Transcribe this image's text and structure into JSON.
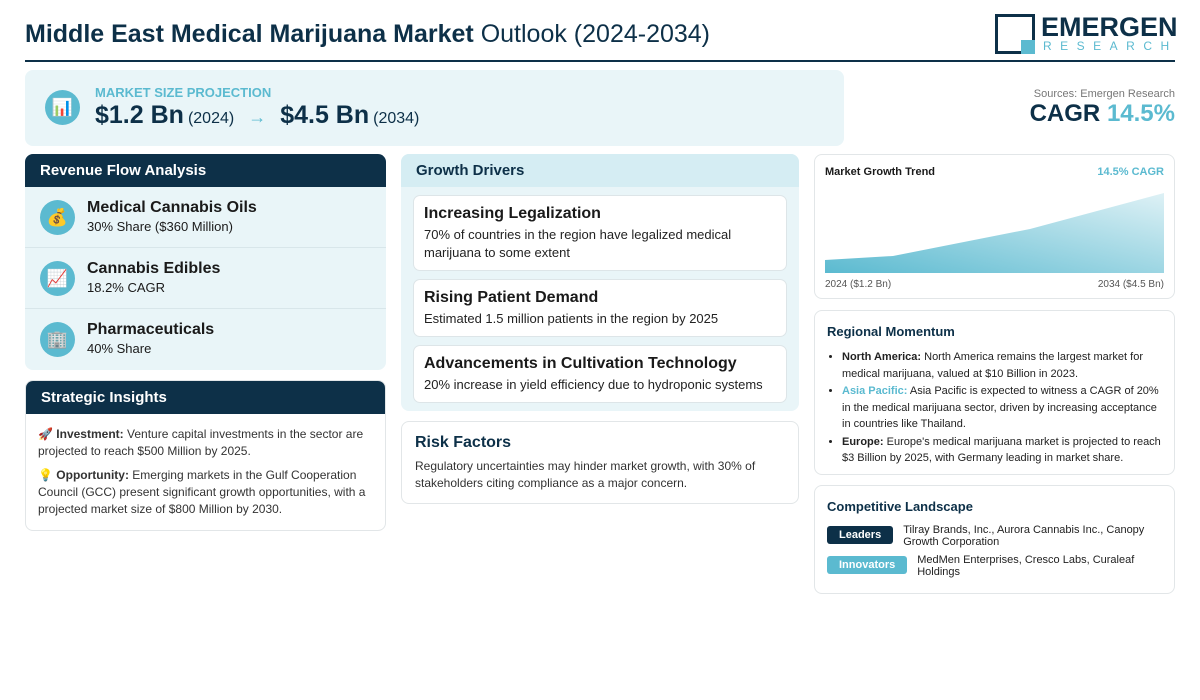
{
  "header": {
    "title_bold": "Middle East Medical Marijuana Market",
    "title_rest": "Outlook (2024-2034)",
    "logo_main": "EMERGEN",
    "logo_sub": "RESEARCH"
  },
  "projection": {
    "icon": "bar-chart-icon",
    "label": "MARKET SIZE PROJECTION",
    "start_value": "$1.2 Bn",
    "start_year": "(2024)",
    "arrow": "→",
    "end_value": "$4.5 Bn",
    "end_year": "(2034)"
  },
  "source": "Sources: Emergen Research",
  "cagr": {
    "label": "CAGR",
    "value": "14.5%"
  },
  "revenue": {
    "title": "Revenue Flow Analysis",
    "items": [
      {
        "icon": "money-bag-icon",
        "glyph": "💰",
        "title": "Medical Cannabis Oils",
        "sub": "30% Share ($360 Million)"
      },
      {
        "icon": "trend-chart-icon",
        "glyph": "📈",
        "title": "Cannabis Edibles",
        "sub": "18.2% CAGR"
      },
      {
        "icon": "building-icon",
        "glyph": "🏢",
        "title": "Pharmaceuticals",
        "sub": "40% Share"
      }
    ]
  },
  "insights": {
    "title": "Strategic Insights",
    "items": [
      {
        "glyph": "🚀",
        "label": "Investment:",
        "text": "Venture capital investments in the sector are projected to reach $500 Million by 2025."
      },
      {
        "glyph": "💡",
        "label": "Opportunity:",
        "text": "Emerging markets in the Gulf Cooperation Council (GCC) present significant growth opportunities, with a projected market size of $800 Million by 2030."
      }
    ]
  },
  "drivers": {
    "title": "Growth Drivers",
    "items": [
      {
        "title": "Increasing Legalization",
        "text": "70% of countries in the region have legalized medical marijuana to some extent"
      },
      {
        "title": "Rising Patient Demand",
        "text": "Estimated 1.5 million patients in the region by 2025"
      },
      {
        "title": "Advancements in Cultivation Technology",
        "text": "20% increase in yield efficiency due to hydroponic systems"
      }
    ]
  },
  "risk": {
    "title": "Risk Factors",
    "text": "Regulatory uncertainties may hinder market growth, with 30% of stakeholders citing compliance as a major concern."
  },
  "trend": {
    "title": "Market Growth Trend",
    "cagr": "14.5% CAGR",
    "start_label": "2024 ($1.2 Bn)",
    "end_label": "2034 ($4.5 Bn)"
  },
  "regional": {
    "title": "Regional Momentum",
    "items": [
      {
        "label": "North America:",
        "text": "North America remains the largest market for medical marijuana, valued at $10 Billion in 2023."
      },
      {
        "label": "Asia Pacific:",
        "text": "Asia Pacific is expected to witness a CAGR of 20% in the medical marijuana sector, driven by increasing acceptance in countries like Thailand."
      },
      {
        "label": "Europe:",
        "text": "Europe's medical marijuana market is projected to reach $3 Billion by 2025, with Germany leading in market share."
      }
    ]
  },
  "competitive": {
    "title": "Competitive Landscape",
    "rows": [
      {
        "badge": "Leaders",
        "color": "#0d3048",
        "text": "Tilray Brands, Inc., Aurora Cannabis Inc., Canopy Growth Corporation"
      },
      {
        "badge": "Innovators",
        "color": "#5bbad0",
        "text": "MedMen Enterprises, Cresco Labs, Curaleaf Holdings"
      }
    ]
  },
  "colors": {
    "navy": "#0d3048",
    "accent": "#5bbad0",
    "panel": "#e9f5f8"
  }
}
